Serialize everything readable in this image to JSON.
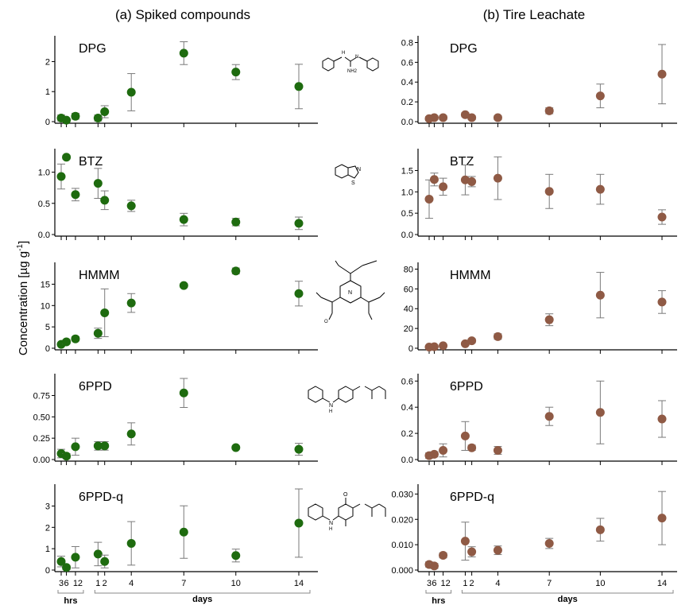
{
  "titles": {
    "left": "(a) Spiked compounds",
    "right": "(b) Tire Leachate"
  },
  "y_axis_label": "Concentration [µg g",
  "y_axis_label_sup": "-1",
  "y_axis_label_end": "]",
  "x_axis": {
    "hrs_ticks": [
      "3",
      "6",
      "12"
    ],
    "day_ticks": [
      "1",
      "2",
      "4",
      "7",
      "10",
      "14"
    ],
    "hrs_label": "hrs",
    "days_label": "days"
  },
  "structures": [
    {
      "compound": "DPG",
      "atom_labels": [
        "H",
        "N",
        "NH2"
      ]
    },
    {
      "compound": "BTZ",
      "atom_labels": [
        "N",
        "S"
      ]
    },
    {
      "compound": "HMMM",
      "atom_labels": [
        "N",
        "O"
      ]
    },
    {
      "compound": "6PPD",
      "atom_labels": [
        "N",
        "H"
      ]
    },
    {
      "compound": "6PPD-q",
      "atom_labels": [
        "N",
        "H",
        "O"
      ]
    }
  ],
  "colors": {
    "spiked": "#1e6b0f",
    "leachate": "#8f5a45",
    "errorbar": "#7a7a7a"
  },
  "chart_data": [
    {
      "type": "scatter",
      "panel": "spiked",
      "title": "DPG",
      "ylim": [
        0,
        2.7
      ],
      "yticks": [
        0,
        1,
        2
      ],
      "x": [
        0.125,
        0.25,
        0.5,
        1,
        2,
        4,
        7,
        10,
        14
      ],
      "values": [
        0.12,
        0.05,
        0.18,
        0.12,
        0.33,
        0.98,
        2.28,
        1.65,
        1.17
      ],
      "errors": [
        0.1,
        0.05,
        0.1,
        0.1,
        0.2,
        0.62,
        0.38,
        0.25,
        0.74
      ]
    },
    {
      "type": "scatter",
      "panel": "spiked",
      "title": "BTZ",
      "ylim": [
        0,
        1.3
      ],
      "yticks": [
        0.0,
        0.5,
        1.0
      ],
      "x": [
        0.125,
        0.25,
        0.5,
        1,
        2,
        4,
        7,
        10,
        14
      ],
      "values": [
        0.93,
        1.24,
        0.64,
        0.82,
        0.55,
        0.46,
        0.24,
        0.2,
        0.18
      ],
      "errors": [
        0.2,
        0.03,
        0.1,
        0.24,
        0.15,
        0.09,
        0.1,
        0.06,
        0.1
      ]
    },
    {
      "type": "scatter",
      "panel": "spiked",
      "title": "HMMM",
      "ylim": [
        0,
        19
      ],
      "yticks": [
        0,
        5,
        10,
        15
      ],
      "x": [
        0.125,
        0.25,
        0.5,
        1,
        2,
        4,
        7,
        10,
        14
      ],
      "values": [
        0.9,
        1.5,
        2.2,
        3.5,
        8.3,
        10.6,
        14.7,
        18.1,
        12.8
      ],
      "errors": [
        0.3,
        0.5,
        0.5,
        1.2,
        5.6,
        2.2,
        0.4,
        0.7,
        2.9
      ]
    },
    {
      "type": "scatter",
      "panel": "spiked",
      "title": "6PPD",
      "ylim": [
        0,
        0.95
      ],
      "yticks": [
        0.0,
        0.25,
        0.5,
        0.75
      ],
      "x": [
        0.125,
        0.25,
        0.5,
        1,
        2,
        4,
        7,
        10,
        14
      ],
      "values": [
        0.07,
        0.04,
        0.15,
        0.16,
        0.16,
        0.3,
        0.78,
        0.14,
        0.12
      ],
      "errors": [
        0.05,
        0.03,
        0.1,
        0.05,
        0.05,
        0.13,
        0.17,
        0.02,
        0.07
      ]
    },
    {
      "type": "scatter",
      "panel": "spiked",
      "title": "6PPD-q",
      "ylim": [
        0,
        3.8
      ],
      "yticks": [
        0,
        1,
        2,
        3
      ],
      "x": [
        0.125,
        0.25,
        0.5,
        1,
        2,
        4,
        7,
        10,
        14
      ],
      "values": [
        0.4,
        0.12,
        0.6,
        0.75,
        0.4,
        1.25,
        1.78,
        0.68,
        2.2
      ],
      "errors": [
        0.25,
        0.1,
        0.5,
        0.55,
        0.3,
        1.02,
        1.23,
        0.3,
        1.6
      ]
    },
    {
      "type": "scatter",
      "panel": "leachate",
      "title": "DPG",
      "ylim": [
        0,
        0.82
      ],
      "yticks": [
        0.0,
        0.2,
        0.4,
        0.6,
        0.8
      ],
      "x": [
        0.125,
        0.25,
        0.5,
        1,
        2,
        4,
        7,
        10,
        14
      ],
      "values": [
        0.03,
        0.04,
        0.04,
        0.07,
        0.04,
        0.04,
        0.11,
        0.26,
        0.48
      ],
      "errors": [
        0.02,
        0.02,
        0.02,
        0.02,
        0.02,
        0.02,
        0.03,
        0.12,
        0.3
      ]
    },
    {
      "type": "scatter",
      "panel": "leachate",
      "title": "BTZ",
      "ylim": [
        0,
        1.9
      ],
      "yticks": [
        0.0,
        0.5,
        1.0,
        1.5
      ],
      "x": [
        0.125,
        0.25,
        0.5,
        1,
        2,
        4,
        7,
        10,
        14
      ],
      "values": [
        0.83,
        1.29,
        1.12,
        1.28,
        1.24,
        1.32,
        1.01,
        1.06,
        0.41
      ],
      "errors": [
        0.45,
        0.15,
        0.2,
        0.35,
        0.12,
        0.5,
        0.4,
        0.35,
        0.17
      ]
    },
    {
      "type": "scatter",
      "panel": "leachate",
      "title": "HMMM",
      "ylim": [
        0,
        82
      ],
      "yticks": [
        0,
        20,
        40,
        60,
        80
      ],
      "x": [
        0.125,
        0.25,
        0.5,
        1,
        2,
        4,
        7,
        10,
        14
      ],
      "values": [
        1.2,
        1.5,
        2.5,
        4.5,
        7.5,
        11.8,
        28.8,
        53.7,
        46.7
      ],
      "errors": [
        0.5,
        0.5,
        0.8,
        1.0,
        2.0,
        2.8,
        6.0,
        23.0,
        11.5
      ]
    },
    {
      "type": "scatter",
      "panel": "leachate",
      "title": "6PPD",
      "ylim": [
        0,
        0.62
      ],
      "yticks": [
        0.0,
        0.2,
        0.4,
        0.6
      ],
      "x": [
        0.125,
        0.25,
        0.5,
        1,
        2,
        4,
        7,
        10,
        14
      ],
      "values": [
        0.03,
        0.04,
        0.07,
        0.18,
        0.09,
        0.07,
        0.33,
        0.36,
        0.31
      ],
      "errors": [
        0.02,
        0.02,
        0.05,
        0.11,
        0.02,
        0.03,
        0.07,
        0.24,
        0.14
      ]
    },
    {
      "type": "scatter",
      "panel": "leachate",
      "title": "6PPD-q",
      "ylim": [
        0,
        0.032
      ],
      "yticks": [
        0.0,
        0.01,
        0.02,
        0.03
      ],
      "x": [
        0.125,
        0.25,
        0.5,
        1,
        2,
        4,
        7,
        10,
        14
      ],
      "values": [
        0.0022,
        0.0016,
        0.0058,
        0.0114,
        0.0072,
        0.0078,
        0.0105,
        0.0159,
        0.0205
      ],
      "errors": [
        0.001,
        0.001,
        0.001,
        0.0075,
        0.002,
        0.0017,
        0.002,
        0.0045,
        0.0105
      ]
    }
  ]
}
